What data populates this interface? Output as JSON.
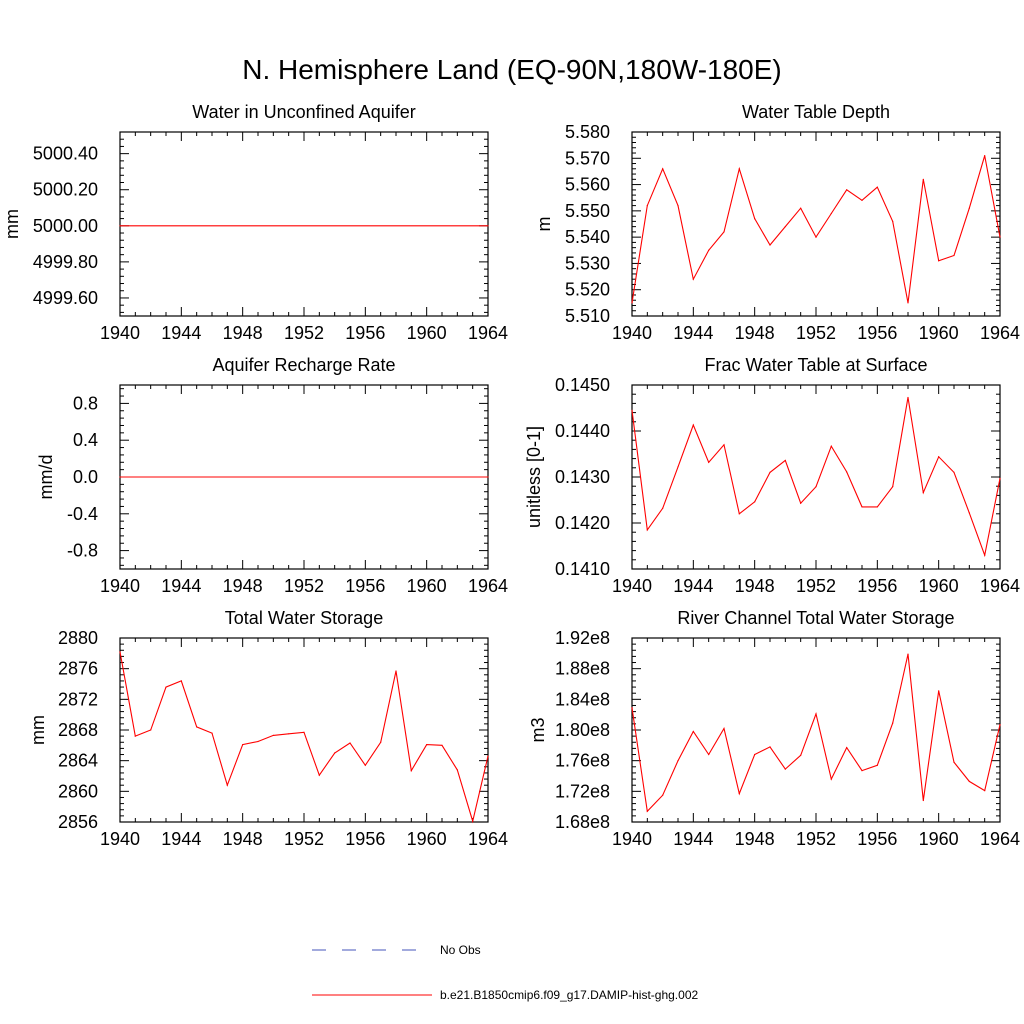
{
  "title": "N. Hemisphere Land (EQ-90N,180W-180E)",
  "legend": [
    {
      "label": "No Obs",
      "color": "#4455bb",
      "style": "dashed"
    },
    {
      "label": "b.e21.B1850cmip6.f09_g17.DAMIP-hist-ghg.002",
      "color": "#ff0000",
      "style": "solid"
    }
  ],
  "chart_data": [
    {
      "type": "line",
      "title": "Water in Unconfined Aquifer",
      "xlabel": "",
      "ylabel": "mm",
      "xlim": [
        1940,
        1964
      ],
      "ylim": [
        4999.5,
        5000.52
      ],
      "xticks": [
        1940,
        1944,
        1948,
        1952,
        1956,
        1960,
        1964
      ],
      "xtick_labels": [
        "1940",
        "1944",
        "1948",
        "1952",
        "1956",
        "1960",
        "1964"
      ],
      "yticks": [
        4999.6,
        4999.8,
        5000.0,
        5000.2,
        5000.4
      ],
      "ytick_labels": [
        "4999.60",
        "4999.80",
        "5000.00",
        "5000.20",
        "5000.40"
      ],
      "x": [
        1940,
        1964
      ],
      "series": [
        {
          "values": [
            5000.0,
            5000.0
          ],
          "color": "#ff0000"
        }
      ]
    },
    {
      "type": "line",
      "title": "Water Table Depth",
      "xlabel": "",
      "ylabel": "m",
      "xlim": [
        1940,
        1964
      ],
      "ylim": [
        5.51,
        5.58
      ],
      "xticks": [
        1940,
        1944,
        1948,
        1952,
        1956,
        1960,
        1964
      ],
      "xtick_labels": [
        "1940",
        "1944",
        "1948",
        "1952",
        "1956",
        "1960",
        "1964"
      ],
      "yticks": [
        5.51,
        5.52,
        5.53,
        5.54,
        5.55,
        5.56,
        5.57,
        5.58
      ],
      "ytick_labels": [
        "5.510",
        "5.520",
        "5.530",
        "5.540",
        "5.550",
        "5.560",
        "5.570",
        "5.580"
      ],
      "x": [
        1940,
        1941,
        1942,
        1943,
        1944,
        1945,
        1946,
        1947,
        1948,
        1949,
        1950,
        1951,
        1952,
        1953,
        1954,
        1955,
        1956,
        1957,
        1958,
        1959,
        1960,
        1961,
        1962,
        1963,
        1964
      ],
      "series": [
        {
          "values": [
            5.515,
            5.552,
            5.566,
            5.552,
            5.524,
            5.535,
            5.542,
            5.566,
            5.547,
            5.537,
            5.544,
            5.551,
            5.54,
            5.549,
            5.558,
            5.554,
            5.559,
            5.546,
            5.515,
            5.562,
            5.531,
            5.533,
            5.551,
            5.571,
            5.54
          ],
          "color": "#ff0000"
        }
      ]
    },
    {
      "type": "line",
      "title": "Aquifer Recharge Rate",
      "xlabel": "",
      "ylabel": "mm/d",
      "xlim": [
        1940,
        1964
      ],
      "ylim": [
        -1.0,
        1.0
      ],
      "xticks": [
        1940,
        1944,
        1948,
        1952,
        1956,
        1960,
        1964
      ],
      "xtick_labels": [
        "1940",
        "1944",
        "1948",
        "1952",
        "1956",
        "1960",
        "1964"
      ],
      "yticks": [
        -0.8,
        -0.4,
        0.0,
        0.4,
        0.8
      ],
      "ytick_labels": [
        "-0.8",
        "-0.4",
        "0.0",
        "0.4",
        "0.8"
      ],
      "x": [
        1940,
        1964
      ],
      "series": [
        {
          "values": [
            0.0,
            0.0
          ],
          "color": "#ff0000"
        }
      ]
    },
    {
      "type": "line",
      "title": "Frac Water Table at Surface",
      "xlabel": "",
      "ylabel": "unitless [0-1]",
      "xlim": [
        1940,
        1964
      ],
      "ylim": [
        0.141,
        0.145
      ],
      "xticks": [
        1940,
        1944,
        1948,
        1952,
        1956,
        1960,
        1964
      ],
      "xtick_labels": [
        "1940",
        "1944",
        "1948",
        "1952",
        "1956",
        "1960",
        "1964"
      ],
      "yticks": [
        0.141,
        0.142,
        0.143,
        0.144,
        0.145
      ],
      "ytick_labels": [
        "0.1410",
        "0.1420",
        "0.1430",
        "0.1440",
        "0.1450"
      ],
      "x": [
        1940,
        1941,
        1942,
        1943,
        1944,
        1945,
        1946,
        1947,
        1948,
        1949,
        1950,
        1951,
        1952,
        1953,
        1954,
        1955,
        1956,
        1957,
        1958,
        1959,
        1960,
        1961,
        1962,
        1963,
        1964
      ],
      "series": [
        {
          "values": [
            0.14445,
            0.14185,
            0.14232,
            0.14322,
            0.14413,
            0.14332,
            0.1437,
            0.1422,
            0.14246,
            0.1431,
            0.14336,
            0.14243,
            0.14279,
            0.14367,
            0.14311,
            0.14235,
            0.14235,
            0.14279,
            0.14473,
            0.14266,
            0.14344,
            0.1431,
            0.14222,
            0.1413,
            0.14297
          ],
          "color": "#ff0000"
        }
      ]
    },
    {
      "type": "line",
      "title": "Total Water Storage",
      "xlabel": "",
      "ylabel": "mm",
      "xlim": [
        1940,
        1964
      ],
      "ylim": [
        2856,
        2880
      ],
      "xticks": [
        1940,
        1944,
        1948,
        1952,
        1956,
        1960,
        1964
      ],
      "xtick_labels": [
        "1940",
        "1944",
        "1948",
        "1952",
        "1956",
        "1960",
        "1964"
      ],
      "yticks": [
        2856,
        2860,
        2864,
        2868,
        2872,
        2876,
        2880
      ],
      "ytick_labels": [
        "2856",
        "2860",
        "2864",
        "2868",
        "2872",
        "2876",
        "2880"
      ],
      "x": [
        1940,
        1941,
        1942,
        1943,
        1944,
        1945,
        1946,
        1947,
        1948,
        1949,
        1950,
        1951,
        1952,
        1953,
        1954,
        1955,
        1956,
        1957,
        1958,
        1959,
        1960,
        1961,
        1962,
        1963,
        1964
      ],
      "series": [
        {
          "values": [
            2878.2,
            2867.2,
            2868.0,
            2873.6,
            2874.4,
            2868.4,
            2867.6,
            2860.8,
            2866.1,
            2866.5,
            2867.3,
            2867.5,
            2867.7,
            2862.1,
            2865.0,
            2866.3,
            2863.4,
            2866.4,
            2875.7,
            2862.7,
            2866.1,
            2866.0,
            2862.8,
            2856.1,
            2864.6
          ],
          "color": "#ff0000"
        }
      ]
    },
    {
      "type": "line",
      "title": "River Channel Total Water Storage",
      "xlabel": "",
      "ylabel": "m3",
      "xlim": [
        1940,
        1964
      ],
      "ylim": [
        168000000.0,
        192000000.0
      ],
      "xticks": [
        1940,
        1944,
        1948,
        1952,
        1956,
        1960,
        1964
      ],
      "xtick_labels": [
        "1940",
        "1944",
        "1948",
        "1952",
        "1956",
        "1960",
        "1964"
      ],
      "yticks": [
        168000000.0,
        172000000.0,
        176000000.0,
        180000000.0,
        184000000.0,
        188000000.0,
        192000000.0
      ],
      "ytick_labels": [
        "1.68e8",
        "1.72e8",
        "1.76e8",
        "1.80e8",
        "1.84e8",
        "1.88e8",
        "1.92e8"
      ],
      "x": [
        1940,
        1941,
        1942,
        1943,
        1944,
        1945,
        1946,
        1947,
        1948,
        1949,
        1950,
        1951,
        1952,
        1953,
        1954,
        1955,
        1956,
        1957,
        1958,
        1959,
        1960,
        1961,
        1962,
        1963,
        1964
      ],
      "series": [
        {
          "values": [
            182900000.0,
            169400000.0,
            171500000.0,
            176000000.0,
            179800000.0,
            176800000.0,
            180200000.0,
            171700000.0,
            176800000.0,
            177800000.0,
            174900000.0,
            176700000.0,
            182100000.0,
            173600000.0,
            177700000.0,
            174700000.0,
            175400000.0,
            180900000.0,
            189900000.0,
            170800000.0,
            185100000.0,
            175800000.0,
            173300000.0,
            172100000.0,
            180700000.0
          ],
          "color": "#ff0000"
        }
      ]
    }
  ]
}
